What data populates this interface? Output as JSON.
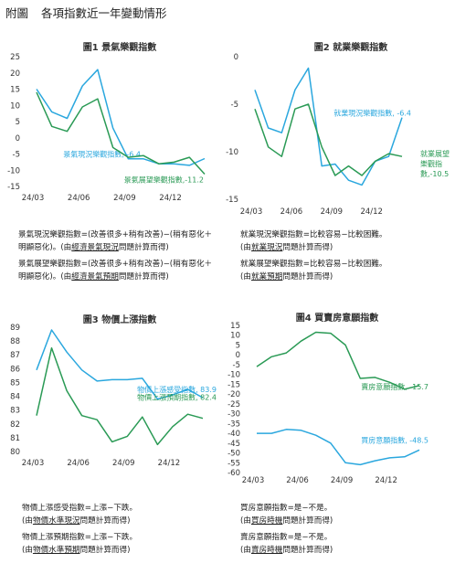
{
  "page": {
    "prefix": "附圖",
    "title": "各項指數近一年變動情形"
  },
  "colors": {
    "current": "#2aa7de",
    "expect": "#2a9a55",
    "axis": "#bbbbbb",
    "text": "#333333"
  },
  "chart_data": [
    {
      "id": "c1",
      "type": "line",
      "title": "圖1  景氣樂觀指數",
      "ylim": [
        -15,
        25
      ],
      "yticks": [
        25,
        20,
        15,
        10,
        5,
        0,
        -5,
        -10,
        -15
      ],
      "x_tick_labels": [
        {
          "label": "24/03",
          "x": 0
        },
        {
          "label": "24/06",
          "x": 3
        },
        {
          "label": "24/09",
          "x": 6
        },
        {
          "label": "24/12",
          "x": 9
        }
      ],
      "x": [
        0,
        1,
        2,
        3,
        4,
        5,
        6,
        7,
        8,
        9,
        10,
        11
      ],
      "series": [
        {
          "key": "current",
          "values": [
            15,
            8,
            6,
            16,
            21,
            3,
            -6.5,
            -6.5,
            -8,
            -8,
            -8.5,
            -6.4
          ],
          "end_label": "景氣現況樂觀指數, -6.4"
        },
        {
          "key": "expect",
          "values": [
            14,
            3.5,
            2,
            9.5,
            12,
            -3,
            -6,
            -5.5,
            -8,
            -7.5,
            -6,
            -11.2
          ],
          "end_label": "景氣展望樂觀指數,-11.2"
        }
      ],
      "notes": [
        [
          {
            "t": "景氣現況樂觀指數=(改善很多+稍有改善)−(稍有惡化＋"
          }
        ],
        [
          {
            "t": "明顯惡化)。(由"
          },
          {
            "t": "經濟景氣現況",
            "u": true
          },
          {
            "t": "問題計算而得)"
          }
        ],
        [
          {
            "t": "景氣展望樂觀指數=(改善很多+稍有改善)−(稍有惡化＋"
          }
        ],
        [
          {
            "t": "明顯惡化)。(由"
          },
          {
            "t": "經濟景氣預期",
            "u": true
          },
          {
            "t": "問題計算而得)"
          }
        ]
      ]
    },
    {
      "id": "c2",
      "type": "line",
      "title": "圖2  就業樂觀指數",
      "ylim": [
        -15,
        0
      ],
      "yticks": [
        0,
        -5,
        -10,
        -15
      ],
      "x_tick_labels": [
        {
          "label": "24/03",
          "x": 0
        },
        {
          "label": "24/06",
          "x": 3
        },
        {
          "label": "24/09",
          "x": 6
        },
        {
          "label": "24/12",
          "x": 9
        }
      ],
      "x": [
        0,
        1,
        2,
        3,
        4,
        5,
        6,
        7,
        8,
        9,
        10,
        11
      ],
      "series": [
        {
          "key": "current",
          "values": [
            -3.5,
            -7.5,
            -8,
            -3.5,
            -1.2,
            -11.5,
            -11.3,
            -13,
            -13.5,
            -11,
            -10.5,
            -6.4
          ],
          "end_label": "就業現況樂觀指數, -6.4"
        },
        {
          "key": "expect",
          "values": [
            -5.5,
            -9.5,
            -10.5,
            -5.5,
            -5,
            -9.5,
            -12.5,
            -11.5,
            -12.5,
            -11,
            -10.2,
            -10.5
          ],
          "end_label": [
            "就業展望",
            "樂觀指",
            "數,-10.5"
          ]
        }
      ],
      "notes": [
        [
          {
            "t": "就業現況樂觀指數=比較容易−比較困難。"
          }
        ],
        [
          {
            "t": "(由"
          },
          {
            "t": "就業現況",
            "u": true
          },
          {
            "t": "問題計算而得)"
          }
        ],
        [
          {
            "t": "就業展望樂觀指數=比較容易−比較困難。"
          }
        ],
        [
          {
            "t": "(由"
          },
          {
            "t": "就業預期",
            "u": true
          },
          {
            "t": "問題計算而得)"
          }
        ]
      ]
    },
    {
      "id": "c3",
      "type": "line",
      "title": "圖3  物價上漲指數",
      "ylim": [
        80,
        89
      ],
      "yticks": [
        89,
        88,
        87,
        86,
        85,
        84,
        83,
        82,
        81,
        80
      ],
      "x_tick_labels": [
        {
          "label": "24/03",
          "x": 0
        },
        {
          "label": "24/06",
          "x": 3
        },
        {
          "label": "24/09",
          "x": 6
        },
        {
          "label": "24/12",
          "x": 9
        }
      ],
      "x": [
        0,
        1,
        2,
        3,
        4,
        5,
        6,
        7,
        8,
        9,
        10,
        11
      ],
      "series": [
        {
          "key": "current",
          "values": [
            85.9,
            88.8,
            87.2,
            85.9,
            85.1,
            85.2,
            85.2,
            85.3,
            83.8,
            84.1,
            84.5,
            83.9
          ],
          "end_label": "物價上漲感受指數, 83.9"
        },
        {
          "key": "expect",
          "values": [
            82.6,
            87.5,
            84.4,
            82.6,
            82.3,
            80.7,
            81.1,
            82.5,
            80.5,
            81.8,
            82.7,
            82.4
          ],
          "end_label": "物價上漲預期指數, 82.4"
        }
      ],
      "notes": [
        [
          {
            "t": "物價上漲感受指數=上漲−下跌。"
          }
        ],
        [
          {
            "t": "(由"
          },
          {
            "t": "物價水準現況",
            "u": true
          },
          {
            "t": "問題計算而得)"
          }
        ],
        [
          {
            "t": "物價上漲預期指數=上漲−下跌。"
          }
        ],
        [
          {
            "t": "(由"
          },
          {
            "t": "物價水準預期",
            "u": true
          },
          {
            "t": "問題計算而得)"
          }
        ]
      ]
    },
    {
      "id": "c4",
      "type": "line",
      "title": "圖4  買賣房意願指數",
      "ylim": [
        -60,
        15
      ],
      "yticks": [
        15,
        10,
        5,
        0,
        -5,
        -10,
        -15,
        -20,
        -25,
        -30,
        -35,
        -40,
        -45,
        -50,
        -55,
        -60
      ],
      "x_tick_labels": [
        {
          "label": "24/03",
          "x": 0
        },
        {
          "label": "24/06",
          "x": 3
        },
        {
          "label": "24/09",
          "x": 6
        },
        {
          "label": "24/12",
          "x": 9
        }
      ],
      "x": [
        0,
        1,
        2,
        3,
        4,
        5,
        6,
        7,
        8,
        9,
        10,
        11
      ],
      "series": [
        {
          "key": "expect",
          "values": [
            -6,
            -1,
            1,
            7,
            11.5,
            11,
            5,
            -12,
            -11.5,
            -14,
            -17.5,
            -15.7
          ],
          "end_label": "賣房意願指數, -15.7"
        },
        {
          "key": "current",
          "values": [
            -40,
            -40,
            -38,
            -38.5,
            -41,
            -45,
            -55,
            -56,
            -54,
            -52.5,
            -52,
            -48.5
          ],
          "end_label": "買房意願指數, -48.5"
        }
      ],
      "notes": [
        [
          {
            "t": "買房意願指數=是−不是。"
          }
        ],
        [
          {
            "t": "(由"
          },
          {
            "t": "買房時機",
            "u": true
          },
          {
            "t": "問題計算而得)"
          }
        ],
        [
          {
            "t": "賣房意願指數=是−不是。"
          }
        ],
        [
          {
            "t": "(由"
          },
          {
            "t": "賣房時機",
            "u": true
          },
          {
            "t": "問題計算而得)"
          }
        ]
      ]
    }
  ]
}
